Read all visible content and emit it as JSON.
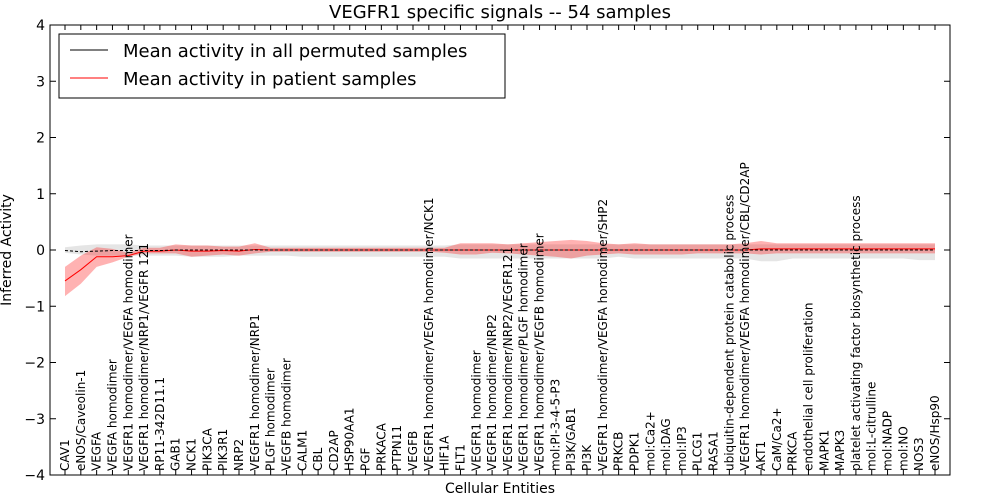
{
  "chart_data": {
    "type": "line",
    "title": "VEGFR1 specific signals -- 54 samples",
    "xlabel": "Cellular Entities",
    "ylabel": "Inferred Activity",
    "ylim": [
      -4,
      4
    ],
    "yticks": [
      "4",
      "3",
      "2",
      "1",
      "0",
      "−1",
      "−2",
      "−3",
      "−4"
    ],
    "ytick_values": [
      4,
      3,
      2,
      1,
      0,
      -1,
      -2,
      -3,
      -4
    ],
    "grid": false,
    "legend_placement": "top-left",
    "categories": [
      "CAV1",
      "eNOS/Caveolin-1",
      "VEGFA",
      "VEGFA homodimer",
      "VEGFR1 homodimer/VEGFA homodimer",
      "VEGFR1 homodimer/NRP1/VEGFR 121",
      "RP11-342D11.1",
      "GAB1",
      "NCK1",
      "PIK3CA",
      "PIK3R1",
      "NRP2",
      "VEGFR1 homodimer/NRP1",
      "PLGF homodimer",
      "VEGFB homodimer",
      "CALM1",
      "CBL",
      "CD2AP",
      "HSP90AA1",
      "PGF",
      "PRKACA",
      "PTPN11",
      "VEGFB",
      "VEGFR1 homodimer/VEGFA homodimer/NCK1",
      "HIF1A",
      "FLT1",
      "VEGFR1 homodimer",
      "VEGFR1 homodimer/NRP2",
      "VEGFR1 homodimer/NRP2/VEGFR121",
      "VEGFR1 homodimer/PLGF homodimer",
      "VEGFR1 homodimer/VEGFB homodimer",
      "mol:PI-3-4-5-P3",
      "PI3K/GAB1",
      "PI3K",
      "VEGFR1 homodimer/VEGFA homodimer/SHP2",
      "PRKCB",
      "PDPK1",
      "mol:Ca2+",
      "mol:DAG",
      "mol:IP3",
      "PLCG1",
      "RASA1",
      "ubiquitin-dependent protein catabolic process",
      "VEGFR1 homodimer/VEGFA homodimer/CBL/CD2AP",
      "AKT1",
      "CaM/Ca2+",
      "PRKCA",
      "endothelial cell proliferation",
      "MAPK1",
      "MAPK3",
      "platelet activating factor biosynthetic process",
      "mol:L-citrulline",
      "mol:NADP",
      "mol:NO",
      "NOS3",
      "eNOS/Hsp90"
    ],
    "series": [
      {
        "name": "Mean activity in all permuted samples",
        "color": "#000000",
        "values": [
          -0.01,
          -0.03,
          -0.02,
          -0.01,
          -0.01,
          -0.01,
          -0.01,
          0,
          0,
          0,
          0,
          0,
          0,
          0,
          0,
          0,
          0,
          0,
          0,
          0,
          0,
          0,
          0,
          0,
          0,
          0,
          0,
          0,
          0,
          0,
          0,
          0,
          0,
          0,
          0,
          0,
          0,
          0,
          0,
          0,
          0,
          0,
          0,
          0,
          0,
          0,
          0,
          0,
          0,
          0,
          0,
          0,
          0,
          0,
          0,
          0
        ],
        "band_lower": [
          -0.05,
          -0.08,
          -0.1,
          -0.1,
          -0.1,
          -0.1,
          -0.1,
          -0.1,
          -0.12,
          -0.12,
          -0.12,
          -0.1,
          -0.1,
          -0.1,
          -0.1,
          -0.12,
          -0.12,
          -0.12,
          -0.12,
          -0.12,
          -0.12,
          -0.12,
          -0.12,
          -0.12,
          -0.12,
          -0.15,
          -0.15,
          -0.15,
          -0.15,
          -0.15,
          -0.15,
          -0.15,
          -0.15,
          -0.15,
          -0.15,
          -0.12,
          -0.15,
          -0.15,
          -0.15,
          -0.15,
          -0.15,
          -0.15,
          -0.15,
          -0.15,
          -0.2,
          -0.2,
          -0.15,
          -0.15,
          -0.15,
          -0.15,
          -0.15,
          -0.15,
          -0.15,
          -0.15,
          -0.18,
          -0.18
        ],
        "band_upper": [
          0.05,
          0.08,
          0.1,
          0.1,
          0.1,
          0.08,
          0.08,
          0.08,
          0.08,
          0.08,
          0.08,
          0.08,
          0.08,
          0.08,
          0.08,
          0.08,
          0.08,
          0.08,
          0.08,
          0.08,
          0.08,
          0.08,
          0.08,
          0.08,
          0.08,
          0.1,
          0.1,
          0.1,
          0.1,
          0.1,
          0.1,
          0.1,
          0.1,
          0.1,
          0.1,
          0.1,
          0.1,
          0.1,
          0.1,
          0.1,
          0.1,
          0.1,
          0.1,
          0.1,
          0.1,
          0.1,
          0.1,
          0.1,
          0.1,
          0.1,
          0.1,
          0.1,
          0.1,
          0.1,
          0.1,
          0.1
        ]
      },
      {
        "name": "Mean activity in patient samples",
        "color": "#ff0000",
        "values": [
          -0.55,
          -0.35,
          -0.12,
          -0.12,
          -0.1,
          -0.02,
          -0.02,
          0,
          -0.02,
          -0.02,
          -0.01,
          -0.02,
          0.01,
          0,
          0,
          0,
          0,
          0,
          0,
          0,
          0,
          0,
          0,
          0,
          0,
          0,
          0,
          0,
          0,
          0,
          0,
          0,
          0,
          0,
          0,
          0,
          0,
          0,
          0,
          0,
          0,
          0,
          0,
          0,
          0.02,
          0.02,
          0.02,
          0.02,
          0.02,
          0.02,
          0.02,
          0.02,
          0.02,
          0.02,
          0.02,
          0.02
        ],
        "band_lower": [
          -0.82,
          -0.6,
          -0.3,
          -0.22,
          -0.12,
          -0.06,
          -0.06,
          -0.06,
          -0.12,
          -0.1,
          -0.08,
          -0.1,
          -0.06,
          -0.03,
          -0.03,
          -0.03,
          -0.03,
          -0.03,
          -0.03,
          -0.03,
          -0.03,
          -0.03,
          -0.03,
          -0.03,
          -0.05,
          -0.08,
          -0.08,
          -0.05,
          -0.06,
          -0.08,
          -0.1,
          -0.12,
          -0.15,
          -0.1,
          -0.08,
          -0.06,
          -0.08,
          -0.08,
          -0.08,
          -0.08,
          -0.06,
          -0.06,
          -0.06,
          -0.06,
          -0.08,
          -0.06,
          -0.06,
          -0.06,
          -0.06,
          -0.06,
          -0.06,
          -0.06,
          -0.06,
          -0.06,
          -0.06,
          -0.06
        ],
        "band_upper": [
          -0.3,
          -0.1,
          0.05,
          0.02,
          -0.05,
          0.04,
          0.04,
          0.1,
          0.08,
          0.08,
          0.06,
          0.06,
          0.12,
          0.04,
          0.04,
          0.04,
          0.04,
          0.04,
          0.04,
          0.04,
          0.04,
          0.04,
          0.04,
          0.04,
          0.04,
          0.12,
          0.12,
          0.12,
          0.1,
          0.12,
          0.14,
          0.16,
          0.18,
          0.16,
          0.12,
          0.1,
          0.12,
          0.1,
          0.1,
          0.1,
          0.1,
          0.1,
          0.1,
          0.12,
          0.16,
          0.12,
          0.12,
          0.12,
          0.12,
          0.12,
          0.12,
          0.12,
          0.12,
          0.12,
          0.12,
          0.12
        ]
      }
    ]
  }
}
